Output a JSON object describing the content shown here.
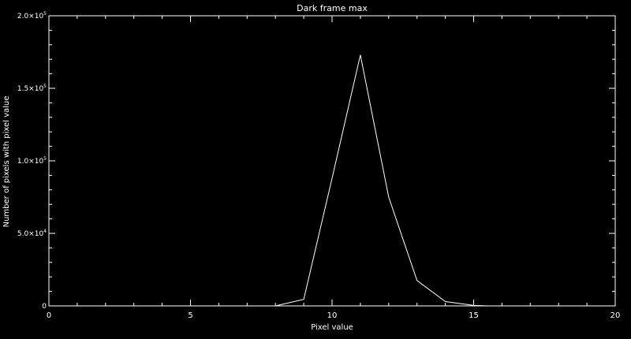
{
  "chart_data": {
    "type": "line",
    "title": "Dark frame max",
    "xlabel": "Pixel value",
    "ylabel": "Number of pixels with pixel value",
    "xlim": [
      0,
      20
    ],
    "ylim": [
      0,
      200000
    ],
    "grid": false,
    "x_ticks": [
      {
        "value": 0,
        "label": "0"
      },
      {
        "value": 5,
        "label": "5"
      },
      {
        "value": 10,
        "label": "10"
      },
      {
        "value": 15,
        "label": "15"
      },
      {
        "value": 20,
        "label": "20"
      }
    ],
    "y_ticks": [
      {
        "value": 0,
        "label": "0",
        "mantissa": "0",
        "exponent": ""
      },
      {
        "value": 50000,
        "label": "5.0×10⁴",
        "mantissa": "5.0×10",
        "exponent": "4"
      },
      {
        "value": 100000,
        "label": "1.0×10⁵",
        "mantissa": "1.0×10",
        "exponent": "5"
      },
      {
        "value": 150000,
        "label": "1.5×10⁵",
        "mantissa": "1.5×10",
        "exponent": "5"
      },
      {
        "value": 200000,
        "label": "2.0×10⁵",
        "mantissa": "2.0×10",
        "exponent": "5"
      }
    ],
    "x_minor_step": 1,
    "y_minor_step": 10000,
    "series": [
      {
        "x": [
          8,
          9,
          10,
          11,
          12,
          13,
          14,
          15,
          15.5
        ],
        "y": [
          0,
          4500,
          88000,
          173000,
          75000,
          17500,
          3000,
          300,
          0
        ]
      }
    ]
  },
  "colors": {
    "background": "#000000",
    "foreground": "#ffffff"
  }
}
